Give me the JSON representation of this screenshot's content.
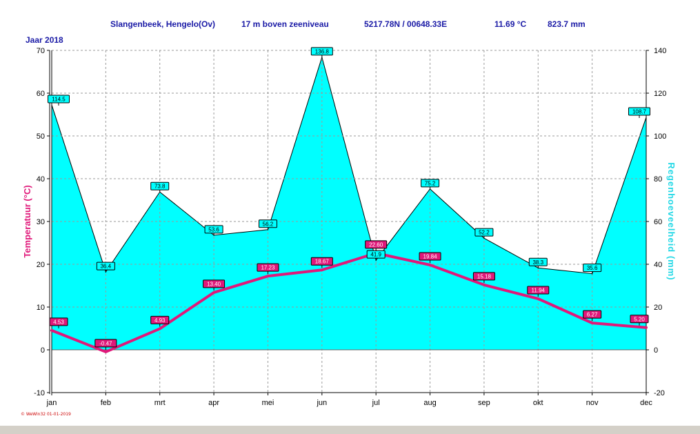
{
  "header": {
    "station": "Slangenbeek, Hengelo(Ov)",
    "elevation": "17 m boven zeeniveau",
    "coords": "5217.78N / 00648.33E",
    "avg_temp": "11.69 °C",
    "total_rain": "823.7 mm"
  },
  "year_label": "Jaar  2018",
  "watermark": "© WeWin32  01-01-2019",
  "colors": {
    "temperature": "#e0187a",
    "rain_fill": "#00ffff",
    "label_blue": "#1a1aa6",
    "grid": "#9a9a9a"
  },
  "chart_data": {
    "type": "line",
    "categories": [
      "jan",
      "feb",
      "mrt",
      "apr",
      "mei",
      "jun",
      "jul",
      "aug",
      "sep",
      "okt",
      "nov",
      "dec"
    ],
    "series": [
      {
        "axis": "left",
        "chart_type": "line",
        "values": [
          4.53,
          -0.47,
          4.93,
          13.4,
          17.23,
          18.67,
          22.6,
          19.84,
          15.18,
          11.94,
          6.27,
          5.2
        ],
        "labels": [
          "4.53",
          "-0.47",
          "4.93",
          "13.40",
          "17.23",
          "18.67",
          "22.60",
          "19.84",
          "15.18",
          "11.94",
          "6.27",
          "5.20"
        ]
      },
      {
        "axis": "right",
        "chart_type": "area",
        "values": [
          114.5,
          36.4,
          73.8,
          53.6,
          56.2,
          136.8,
          41.9,
          75.2,
          52.2,
          38.3,
          35.6,
          108.7
        ],
        "labels": [
          "114.5",
          "36.4",
          "73.8",
          "53.6",
          "56.2",
          "136.8",
          "41.9",
          "75.2",
          "52.2",
          "38.3",
          "35.6",
          "108.7"
        ]
      }
    ],
    "ylabel": "Temperatuur  (°C)",
    "y2label": "Regenhoeveelheid  (mm)",
    "ylim": [
      -10,
      70
    ],
    "y2lim": [
      -20,
      140
    ],
    "yticks": [
      "70",
      "60",
      "50",
      "40",
      "30",
      "20",
      "10",
      "0",
      "-10"
    ],
    "y2ticks": [
      "140",
      "120",
      "100",
      "80",
      "60",
      "40",
      "20",
      "0",
      "-20"
    ],
    "grid": true
  }
}
